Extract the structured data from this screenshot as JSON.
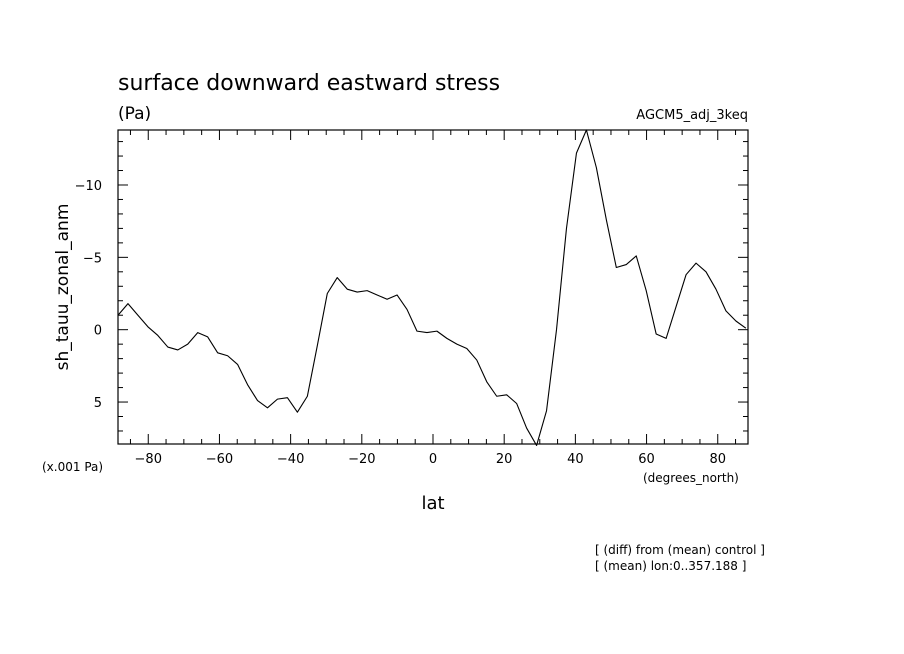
{
  "chart_data": {
    "type": "line",
    "title": "surface downward eastward stress",
    "units": "(Pa)",
    "run_label": "AGCM5_adj_3keq",
    "xlabel": "lat",
    "x_units": "(degrees_north)",
    "ylabel": "sh_tauu_zonal_anm",
    "y_scale_note": "(x.001 Pa)",
    "xlim": [
      -88.5,
      88.5
    ],
    "ylim": [
      7.9,
      -13.8
    ],
    "y_inverted": true,
    "grid": false,
    "x_ticks": [
      -80,
      -60,
      -40,
      -20,
      0,
      20,
      40,
      60,
      80
    ],
    "x_tick_labels": [
      "−80",
      "−60",
      "−40",
      "−20",
      "0",
      "20",
      "40",
      "60",
      "80"
    ],
    "y_ticks": [
      -10,
      -5,
      0,
      5
    ],
    "y_tick_labels": [
      "−10",
      "−5",
      "0",
      "5"
    ],
    "series": [
      {
        "color": "#000000",
        "x": [
          -88.5,
          -85.7,
          -82.9,
          -80.1,
          -77.3,
          -74.5,
          -71.7,
          -68.9,
          -66.1,
          -63.3,
          -60.5,
          -57.7,
          -54.9,
          -52.1,
          -49.3,
          -46.5,
          -43.7,
          -40.9,
          -38.1,
          -35.3,
          -32.5,
          -29.7,
          -26.9,
          -24.1,
          -21.3,
          -18.5,
          -15.7,
          -12.9,
          -10.1,
          -7.3,
          -4.5,
          -1.7,
          1.1,
          3.9,
          6.7,
          9.5,
          12.3,
          15.1,
          17.9,
          20.7,
          23.5,
          26.3,
          29.1,
          31.9,
          34.7,
          37.5,
          40.3,
          43.1,
          45.9,
          48.7,
          51.5,
          54.3,
          57.1,
          59.9,
          62.7,
          65.5,
          68.3,
          71.1,
          73.9,
          76.7,
          79.5,
          82.3,
          85.1,
          87.9
        ],
        "y": [
          -1.0,
          -1.8,
          -1.0,
          -0.2,
          0.4,
          1.2,
          1.4,
          1.0,
          0.2,
          0.5,
          1.6,
          1.8,
          2.4,
          3.8,
          4.9,
          5.4,
          4.8,
          4.7,
          5.7,
          4.6,
          1.1,
          -2.5,
          -3.6,
          -2.8,
          -2.6,
          -2.7,
          -2.4,
          -2.1,
          -2.4,
          -1.4,
          0.1,
          0.2,
          0.1,
          0.6,
          1.0,
          1.3,
          2.1,
          3.6,
          4.6,
          4.5,
          5.1,
          6.8,
          8.0,
          5.6,
          0.0,
          -7.0,
          -12.2,
          -13.8,
          -11.2,
          -7.6,
          -4.3,
          -4.5,
          -5.1,
          -2.7,
          0.3,
          0.6,
          -1.6,
          -3.8,
          -4.6,
          -4.0,
          -2.8,
          -1.3,
          -0.6,
          -0.1
        ]
      }
    ]
  },
  "notes": {
    "line1": "[ (diff) from (mean) control ]",
    "line2": "[ (mean) lon:0..357.188 ]"
  }
}
